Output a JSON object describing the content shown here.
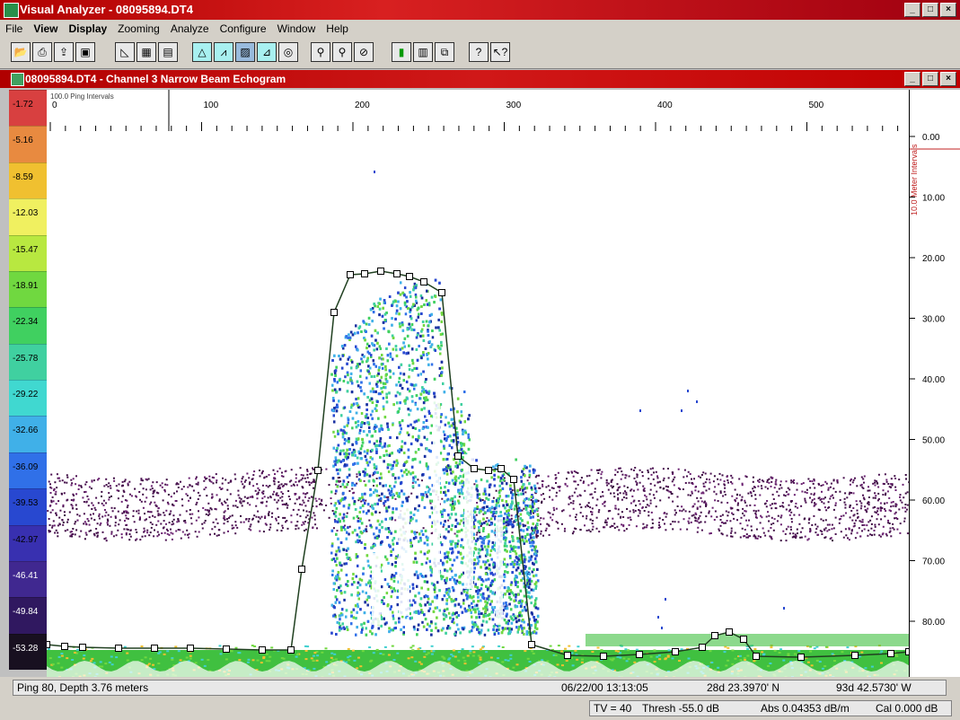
{
  "app": {
    "title": "Visual Analyzer - 08095894.DT4",
    "min": "_",
    "max": "□",
    "close": "×"
  },
  "menu": [
    "File",
    "View",
    "Display",
    "Zooming",
    "Analyze",
    "Configure",
    "Window",
    "Help"
  ],
  "toolbar_icons": [
    "open-icon",
    "print-icon",
    "export-icon",
    "save-icon",
    "chart-icon",
    "grid-icon",
    "panel-icon",
    "echogram-icon",
    "peak-icon",
    "fill-icon",
    "scale-icon",
    "target-icon",
    "zoom-in-icon",
    "zoom-out-icon",
    "zoom-cancel-icon",
    "histogram-icon",
    "table-icon",
    "layers-icon",
    "help-icon",
    "context-help-icon"
  ],
  "child_window": {
    "title": "08095894.DT4 - Channel 3 Narrow Beam Echogram"
  },
  "colors": {
    "title_red": "#c00000",
    "school_purple": "#4a1050",
    "bottom_green": "#40c040",
    "track_line": "#204020",
    "red_axis_label": "#c02020"
  },
  "color_scale": [
    {
      "label": "-1.72",
      "color": "#d84040"
    },
    {
      "label": "-5.16",
      "color": "#e88a40"
    },
    {
      "label": "-8.59",
      "color": "#f0c030"
    },
    {
      "label": "-12.03",
      "color": "#f0f060"
    },
    {
      "label": "-15.47",
      "color": "#b8e840"
    },
    {
      "label": "-18.91",
      "color": "#70d840"
    },
    {
      "label": "-22.34",
      "color": "#40d060"
    },
    {
      "label": "-25.78",
      "color": "#40d0a0"
    },
    {
      "label": "-29.22",
      "color": "#40d8d0"
    },
    {
      "label": "-32.66",
      "color": "#40b0e8"
    },
    {
      "label": "-36.09",
      "color": "#3070e8"
    },
    {
      "label": "-39.53",
      "color": "#2848d0"
    },
    {
      "label": "-42.97",
      "color": "#3830b0"
    },
    {
      "label": "-46.41",
      "color": "#402890"
    },
    {
      "label": "-49.84",
      "color": "#301860"
    },
    {
      "label": "-53.28",
      "color": "#181020"
    }
  ],
  "top_axis": {
    "caption": "100.0 Ping Intervals",
    "ticks": [
      "0",
      "100",
      "200",
      "300",
      "400",
      "500"
    ]
  },
  "right_axis": {
    "caption": "10.0 Meter Intervals",
    "ticks": [
      "0.00",
      "10.00",
      "20.00",
      "30.00",
      "40.00",
      "50.00",
      "60.00",
      "70.00",
      "80.00"
    ]
  },
  "status": {
    "ping_depth": "Ping 80, Depth 3.76 meters",
    "datetime": "06/22/00 13:13:05",
    "latitude": "28d 23.3970' N",
    "longitude": "93d 42.5730' W",
    "tv": "TV = 40",
    "thresh": "Thresh -55.0 dB",
    "abs": "Abs 0.04353 dB/m",
    "cal": "Cal 0.000 dB"
  }
}
